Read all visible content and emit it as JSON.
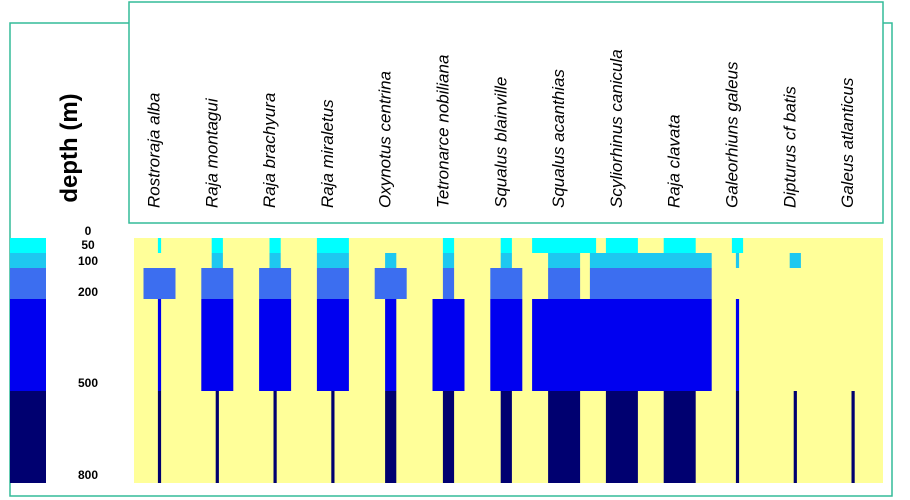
{
  "chart_data": {
    "type": "heatmap",
    "title": "",
    "ylabel": "depth (m)",
    "y_ticks": [
      "0",
      "50",
      "100",
      "200",
      "500",
      "800"
    ],
    "depth_bands": [
      {
        "from": 0,
        "to": 50,
        "color": "#00ffff"
      },
      {
        "from": 50,
        "to": 100,
        "color": "#1ec8f0"
      },
      {
        "from": 100,
        "to": 200,
        "color": "#3c6ef0"
      },
      {
        "from": 200,
        "to": 500,
        "color": "#0000f0"
      },
      {
        "from": 500,
        "to": 800,
        "color": "#000070"
      }
    ],
    "background_color": "#ffff99",
    "frame_color": "#33bb99",
    "species": [
      {
        "name": "Rostroraja alba",
        "widths": [
          0.1,
          0,
          1.0,
          0.1,
          0.1
        ]
      },
      {
        "name": "Raja montagui",
        "widths": [
          0.35,
          0.35,
          1.0,
          1.0,
          0.1
        ]
      },
      {
        "name": "Raja brachyura",
        "widths": [
          0.35,
          0.35,
          1.0,
          1.0,
          0.1
        ]
      },
      {
        "name": "Raja miraletus",
        "widths": [
          1.0,
          1.0,
          1.0,
          1.0,
          0.1
        ]
      },
      {
        "name": "Oxynotus centrina",
        "widths": [
          0,
          0.35,
          1.0,
          0.35,
          0.35
        ]
      },
      {
        "name": "Tetronarce nobiliana",
        "widths": [
          0.35,
          0.35,
          0.35,
          1.0,
          0.35
        ]
      },
      {
        "name": "Squalus blainville",
        "widths": [
          0.35,
          0.35,
          1.0,
          1.0,
          0.35
        ]
      },
      {
        "name": "Squalus acanthias",
        "widths": [
          2.0,
          1.0,
          1.0,
          2.0,
          1.0
        ]
      },
      {
        "name": "Scyliorhinus canicula",
        "widths": [
          1.0,
          2.0,
          2.0,
          2.0,
          1.0
        ]
      },
      {
        "name": "Raja clavata",
        "widths": [
          1.0,
          2.0,
          2.0,
          2.0,
          1.0
        ]
      },
      {
        "name": "Galeorhiuns galeus",
        "widths": [
          0.35,
          0.1,
          0,
          0.1,
          0.1
        ]
      },
      {
        "name": "Dipturus cf batis",
        "widths": [
          0,
          0.35,
          0,
          0,
          0.1
        ]
      },
      {
        "name": "Galeus atlanticus",
        "widths": [
          0,
          0,
          0,
          0,
          0.1
        ]
      }
    ]
  }
}
